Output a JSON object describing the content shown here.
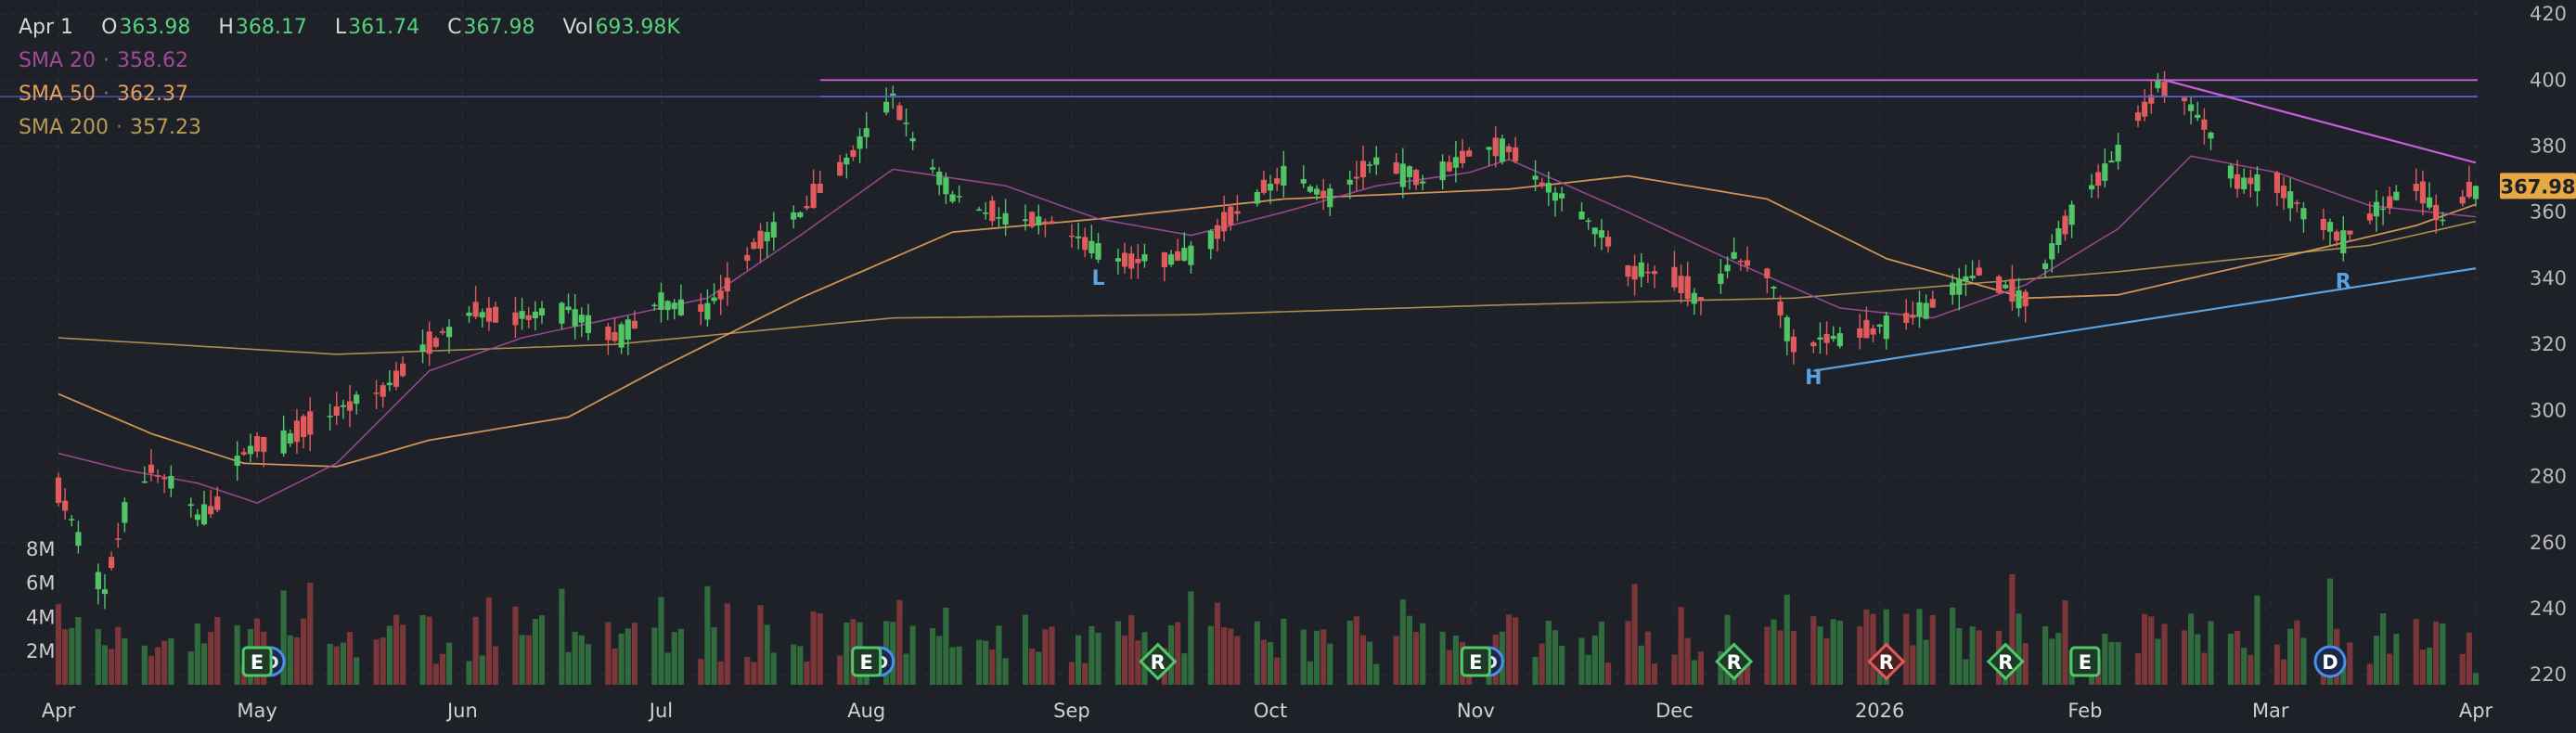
{
  "header": {
    "date": "Apr 1",
    "open_label": "O",
    "open_value": "363.98",
    "high_label": "H",
    "high_value": "368.17",
    "low_label": "L",
    "low_value": "361.74",
    "close_label": "C",
    "close_value": "367.98",
    "vol_label": "Vol",
    "vol_value": "693.98K",
    "sma20_label": "SMA 20",
    "sma20_value": "358.62",
    "sma20_color": "#a24a97",
    "sma50_label": "SMA 50",
    "sma50_value": "362.37",
    "sma50_color": "#e2a05b",
    "sma200_label": "SMA 200",
    "sma200_value": "357.23",
    "sma200_color": "#b99a55",
    "sep": "·"
  },
  "chart_data": {
    "type": "candlestick",
    "ylim": [
      215,
      422
    ],
    "y_ticks": [
      "420",
      "400",
      "380",
      "360",
      "340",
      "320",
      "300",
      "280",
      "260",
      "240",
      "220"
    ],
    "x_ticks": [
      {
        "label": "Apr",
        "date": "Apr 1"
      },
      {
        "label": "May",
        "date": "May 1"
      },
      {
        "label": "Jun",
        "date": "Jun 1"
      },
      {
        "label": "Jul",
        "date": "Jul 1"
      },
      {
        "label": "Aug",
        "date": "Aug 1"
      },
      {
        "label": "Sep",
        "date": "Sep 1"
      },
      {
        "label": "Oct",
        "date": "Oct 1"
      },
      {
        "label": "Nov",
        "date": "Nov 1"
      },
      {
        "label": "Dec",
        "date": "Dec 1"
      },
      {
        "label": "2026",
        "date": "Jan 1, 2026"
      },
      {
        "label": "Feb",
        "date": "Feb 1, 2026"
      },
      {
        "label": "Mar",
        "date": "Mar 1, 2026"
      },
      {
        "label": "Apr",
        "date": "Apr 1, 2026"
      }
    ],
    "close_key": [
      [
        "Apr 1",
        275
      ],
      [
        "Apr 4",
        262
      ],
      [
        "Apr 8",
        245
      ],
      [
        "Apr 11",
        270
      ],
      [
        "Apr 15",
        282
      ],
      [
        "Apr 18",
        278
      ],
      [
        "Apr 22",
        268
      ],
      [
        "Apr 25",
        272
      ],
      [
        "Apr 29",
        288
      ],
      [
        "May 6",
        292
      ],
      [
        "May 13",
        300
      ],
      [
        "May 20",
        306
      ],
      [
        "May 27",
        320
      ],
      [
        "Jun 3",
        330
      ],
      [
        "Jun 10",
        328
      ],
      [
        "Jun 17",
        330
      ],
      [
        "Jun 24",
        322
      ],
      [
        "Jul 1",
        333
      ],
      [
        "Jul 8",
        330
      ],
      [
        "Jul 15",
        350
      ],
      [
        "Jul 22",
        360
      ],
      [
        "Jul 29",
        375
      ],
      [
        "Aug 5",
        395
      ],
      [
        "Aug 8",
        382
      ],
      [
        "Aug 14",
        365
      ],
      [
        "Aug 22",
        358
      ],
      [
        "Aug 29",
        356
      ],
      [
        "Sep 5",
        348
      ],
      [
        "Sep 11",
        345
      ],
      [
        "Sep 19",
        347
      ],
      [
        "Sep 26",
        360
      ],
      [
        "Oct 3",
        372
      ],
      [
        "Oct 10",
        365
      ],
      [
        "Oct 17",
        375
      ],
      [
        "Oct 24",
        370
      ],
      [
        "Oct 31",
        378
      ],
      [
        "Nov 6",
        380
      ],
      [
        "Nov 10",
        370
      ],
      [
        "Nov 17",
        360
      ],
      [
        "Nov 24",
        343
      ],
      [
        "Dec 1",
        340
      ],
      [
        "Dec 5",
        333
      ],
      [
        "Dec 10",
        346
      ],
      [
        "Dec 15",
        342
      ],
      [
        "Dec 19",
        320
      ],
      [
        "Dec 26",
        322
      ],
      [
        "Jan 2, 2026",
        326
      ],
      [
        "Jan 9, 2026",
        332
      ],
      [
        "Jan 16, 2026",
        342
      ],
      [
        "Jan 23, 2026",
        333
      ],
      [
        "Jan 30, 2026",
        360
      ],
      [
        "Feb 6, 2026",
        378
      ],
      [
        "Feb 12, 2026",
        398
      ],
      [
        "Feb 17, 2026",
        392
      ],
      [
        "Feb 24, 2026",
        370
      ],
      [
        "Mar 2, 2026",
        368
      ],
      [
        "Mar 6, 2026",
        360
      ],
      [
        "Mar 12, 2026",
        352
      ],
      [
        "Mar 18, 2026",
        362
      ],
      [
        "Mar 23, 2026",
        368
      ],
      [
        "Mar 27, 2026",
        358
      ],
      [
        "Apr 1, 2026",
        367.98
      ]
    ],
    "sma20_key": [
      [
        "Apr 1",
        287
      ],
      [
        "Apr 11",
        282
      ],
      [
        "Apr 22",
        278
      ],
      [
        "May 1",
        272
      ],
      [
        "May 13",
        284
      ],
      [
        "May 27",
        312
      ],
      [
        "Jun 10",
        322
      ],
      [
        "Jun 24",
        328
      ],
      [
        "Jul 8",
        334
      ],
      [
        "Jul 22",
        353
      ],
      [
        "Aug 5",
        373
      ],
      [
        "Aug 22",
        368
      ],
      [
        "Sep 5",
        358
      ],
      [
        "Sep 19",
        353
      ],
      [
        "Oct 3",
        360
      ],
      [
        "Oct 17",
        368
      ],
      [
        "Oct 31",
        372
      ],
      [
        "Nov 6",
        376
      ],
      [
        "Nov 24",
        360
      ],
      [
        "Dec 10",
        345
      ],
      [
        "Dec 26",
        331
      ],
      [
        "Jan 9, 2026",
        328
      ],
      [
        "Jan 23, 2026",
        338
      ],
      [
        "Feb 6, 2026",
        355
      ],
      [
        "Feb 17, 2026",
        377
      ],
      [
        "Mar 2, 2026",
        372
      ],
      [
        "Mar 16, 2026",
        362
      ],
      [
        "Apr 1, 2026",
        358.62
      ]
    ],
    "sma50_key": [
      [
        "Apr 1",
        305
      ],
      [
        "Apr 15",
        293
      ],
      [
        "Apr 29",
        284
      ],
      [
        "May 13",
        283
      ],
      [
        "May 27",
        291
      ],
      [
        "Jun 17",
        298
      ],
      [
        "Jul 1",
        313
      ],
      [
        "Jul 22",
        334
      ],
      [
        "Aug 14",
        354
      ],
      [
        "Sep 5",
        358
      ],
      [
        "Oct 3",
        364
      ],
      [
        "Nov 6",
        367
      ],
      [
        "Nov 24",
        371
      ],
      [
        "Dec 15",
        364
      ],
      [
        "Jan 2, 2026",
        346
      ],
      [
        "Jan 23, 2026",
        334
      ],
      [
        "Feb 6, 2026",
        335
      ],
      [
        "Mar 2, 2026",
        346
      ],
      [
        "Mar 23, 2026",
        356
      ],
      [
        "Apr 1, 2026",
        362.37
      ]
    ],
    "sma200_key": [
      [
        "Apr 1",
        322
      ],
      [
        "May 13",
        317
      ],
      [
        "Jun 24",
        320
      ],
      [
        "Aug 5",
        328
      ],
      [
        "Sep 19",
        329
      ],
      [
        "Nov 6",
        332
      ],
      [
        "Dec 19",
        334
      ],
      [
        "Feb 6, 2026",
        342
      ],
      [
        "Mar 16, 2026",
        350
      ],
      [
        "Apr 1, 2026",
        357.23
      ]
    ],
    "horizontal_lines": [
      {
        "value": 400,
        "color": "#c860d8"
      },
      {
        "value": 395,
        "color": "#5a5ecf"
      }
    ],
    "trendlines": [
      {
        "from": [
          "Feb 13, 2026",
          400
        ],
        "to": [
          "Apr 1, 2026",
          375
        ],
        "color": "#c860d8"
      },
      {
        "from": [
          "Dec 22",
          312
        ],
        "to": [
          "Apr 1, 2026",
          343
        ],
        "color": "#5aa2e0"
      }
    ],
    "pattern_labels": [
      {
        "text": "L",
        "date": "Sep 5",
        "value": 338,
        "color": "#5aa2e0"
      },
      {
        "text": "H",
        "date": "Dec 22",
        "value": 308,
        "color": "#5aa2e0"
      },
      {
        "text": "R",
        "date": "Mar 12, 2026",
        "value": 337,
        "color": "#5aa2e0"
      }
    ],
    "price_tag": {
      "value": 367.98,
      "text": "367.98",
      "color": "#e6a843"
    },
    "volume_axis": {
      "max": 8000000,
      "ticks": [
        "8M",
        "6M",
        "4M",
        "2M"
      ]
    },
    "events": [
      {
        "date": "May 1",
        "type": "E",
        "shape": "square",
        "color": "#4fc86a",
        "with_dividend": true
      },
      {
        "date": "Aug 1",
        "type": "E",
        "shape": "square",
        "color": "#4fc86a",
        "with_dividend": true
      },
      {
        "date": "Sep 14",
        "type": "R",
        "shape": "diamond",
        "color": "#4fc86a",
        "with_dividend": false
      },
      {
        "date": "Nov 1",
        "type": "E",
        "shape": "square",
        "color": "#4fc86a",
        "with_dividend": true
      },
      {
        "date": "Dec 10",
        "type": "R",
        "shape": "diamond",
        "color": "#4fc86a",
        "with_dividend": false
      },
      {
        "date": "Jan 2, 2026",
        "type": "R",
        "shape": "diamond",
        "color": "#e05a5a",
        "with_dividend": false
      },
      {
        "date": "Jan 20, 2026",
        "type": "R",
        "shape": "diamond",
        "color": "#4fc86a",
        "with_dividend": false
      },
      {
        "date": "Feb 1, 2026",
        "type": "E",
        "shape": "square",
        "color": "#4fc86a",
        "with_dividend": false
      },
      {
        "date": "Mar 10, 2026",
        "type": "D",
        "shape": "circle",
        "color": "#4a8ef0",
        "with_dividend": false
      }
    ],
    "dividend_marker": "D",
    "grid": true,
    "colors": {
      "up": "#52c468",
      "down": "#e05b5b",
      "vol_up": "#2f6b3c",
      "vol_down": "#7a3638",
      "axis_text": "#b8b8b8",
      "grid": "#2c2f38",
      "background": "#1f2128"
    }
  }
}
